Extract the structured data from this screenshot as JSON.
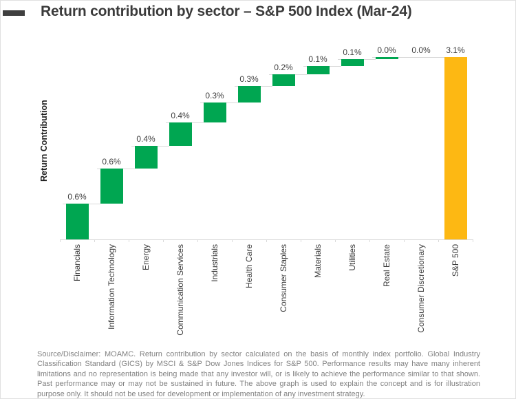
{
  "header": {
    "title": "Return contribution by sector – S&P 500 Index (Mar-24)"
  },
  "footer": {
    "disclaimer": "Source/Disclaimer: MOAMC. Return contribution by sector calculated on the basis of monthly index portfolio. Global Industry Classification Standard (GICS) by MSCI & S&P Dow Jones Indices for S&P 500. Performance results may have many inherent limitations and no representation is being made that any investor will, or is likely to achieve the performance similar to that shown. Past performance may or may not be sustained in future. The above graph is used to explain the concept and is for illustration purpose only. It should not be used for development or implementation of any investment strategy."
  },
  "chart_data": {
    "type": "bar",
    "subtype": "waterfall",
    "title": "Return contribution by sector – S&P 500 Index (Mar-24)",
    "xlabel": "",
    "ylabel": "Return Contribution",
    "ylim": [
      0,
      3.36
    ],
    "grid": false,
    "legend": false,
    "categories": [
      "Financials",
      "Information Technology",
      "Energy",
      "Communication Services",
      "Industrials",
      "Health Care",
      "Consumer Staples",
      "Materials",
      "Utilities",
      "Real Estate",
      "Consumer Discretionary",
      "S&P 500"
    ],
    "values": [
      0.6,
      0.6,
      0.4,
      0.4,
      0.3,
      0.3,
      0.2,
      0.1,
      0.1,
      0.0,
      0.0,
      3.1
    ],
    "labels": [
      "0.6%",
      "0.6%",
      "0.4%",
      "0.4%",
      "0.3%",
      "0.3%",
      "0.2%",
      "0.1%",
      "0.1%",
      "0.0%",
      "0.0%",
      "3.1%"
    ],
    "cumulative_start": [
      0,
      0.61,
      1.21,
      1.59,
      1.99,
      2.33,
      2.61,
      2.81,
      2.95,
      3.06,
      3.1,
      0
    ],
    "cumulative_end": [
      0.61,
      1.21,
      1.59,
      1.99,
      2.33,
      2.61,
      2.81,
      2.95,
      3.06,
      3.1,
      3.1,
      3.1
    ],
    "total_index": 11,
    "colors": {
      "increase": "#00A651",
      "total": "#FDB813",
      "connector": "#D9D9D9",
      "axis": "#D9D9D9",
      "label_text": "#3F3F3F"
    }
  }
}
